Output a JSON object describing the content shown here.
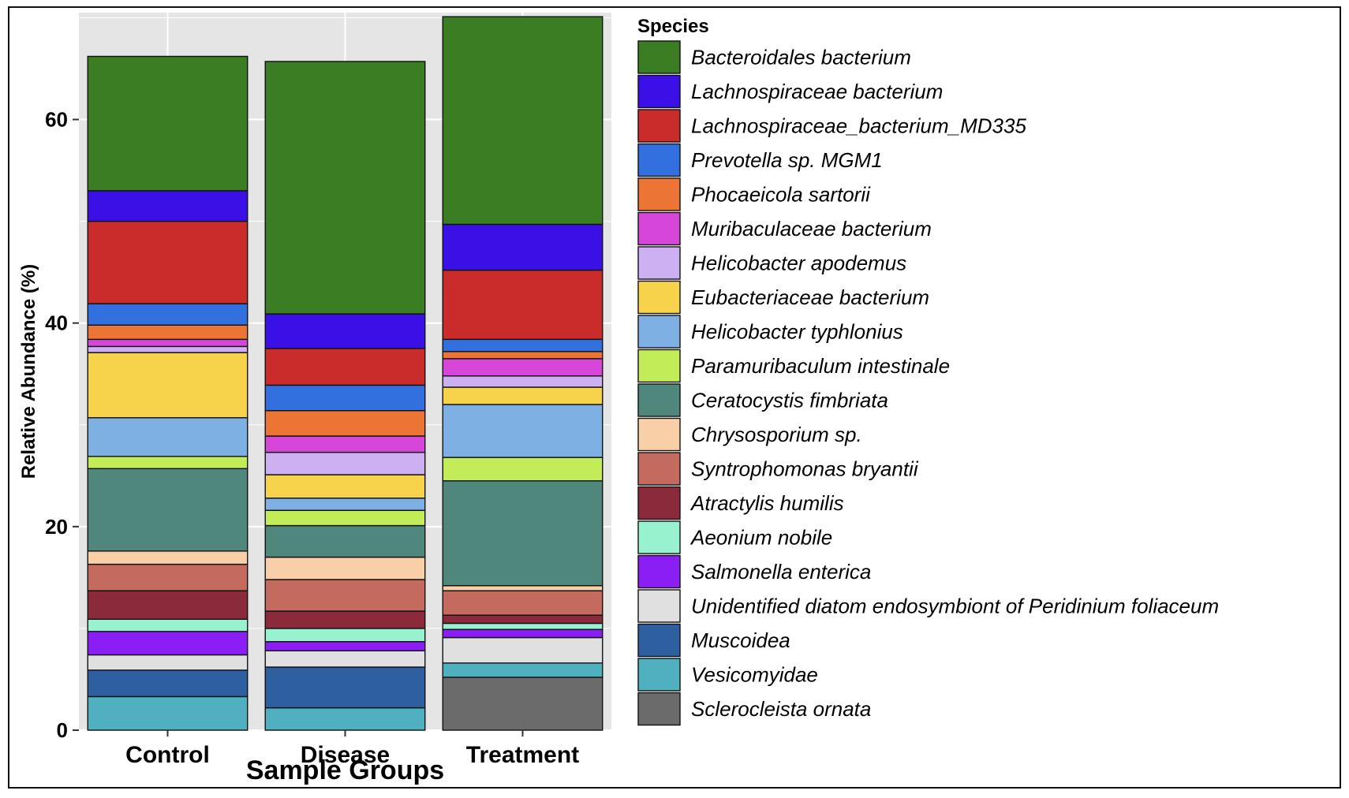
{
  "chart_data": {
    "type": "bar",
    "stacked": true,
    "xlabel": "Sample Groups",
    "ylabel": "Relative Abundance (%)",
    "ylim": [
      0,
      70.5
    ],
    "yticks": [
      0,
      20,
      40,
      60
    ],
    "grid": true,
    "legend_title": "Species",
    "legend_position": "right",
    "categories": [
      "Control",
      "Disease",
      "Treatment"
    ],
    "series": [
      {
        "name": "Sclerocleista ornata",
        "color": "#6b6b6b",
        "values": [
          0,
          0,
          5.2
        ]
      },
      {
        "name": "Vesicomyidae",
        "color": "#4fb0c0",
        "values": [
          3.3,
          2.2,
          1.4
        ]
      },
      {
        "name": "Muscoidea",
        "color": "#2e5fa0",
        "values": [
          2.6,
          4.0,
          0
        ]
      },
      {
        "name": "Unidentified diatom endosymbiont of Peridinium foliaceum",
        "color": "#e0e0e0",
        "values": [
          1.5,
          1.6,
          2.5
        ]
      },
      {
        "name": "Salmonella enterica",
        "color": "#8a1ef5",
        "values": [
          2.3,
          0.9,
          0.8
        ]
      },
      {
        "name": "Aeonium nobile",
        "color": "#98f2cf",
        "values": [
          1.2,
          1.3,
          0.6
        ]
      },
      {
        "name": "Atractylis humilis",
        "color": "#8b2a3a",
        "values": [
          2.8,
          1.7,
          0.8
        ]
      },
      {
        "name": "Syntrophomonas bryantii",
        "color": "#c46a5e",
        "values": [
          2.6,
          3.1,
          2.4
        ]
      },
      {
        "name": "Chrysosporium sp.",
        "color": "#f8cfa6",
        "values": [
          1.3,
          2.2,
          0.5
        ]
      },
      {
        "name": "Ceratocystis fimbriata",
        "color": "#4f877c",
        "values": [
          8.1,
          3.1,
          10.3
        ]
      },
      {
        "name": "Paramuribaculum intestinale",
        "color": "#c2ec58",
        "values": [
          1.2,
          1.5,
          2.3
        ]
      },
      {
        "name": "Helicobacter typhlonius",
        "color": "#7fb0e3",
        "values": [
          3.8,
          1.2,
          5.2
        ]
      },
      {
        "name": "Eubacteriaceae bacterium",
        "color": "#f6d34a",
        "values": [
          6.4,
          2.3,
          1.7
        ]
      },
      {
        "name": "Helicobacter apodemus",
        "color": "#cdb0f2",
        "values": [
          0.6,
          2.2,
          1.1
        ]
      },
      {
        "name": "Muribaculaceae bacterium",
        "color": "#d646d8",
        "values": [
          0.7,
          1.6,
          1.7
        ]
      },
      {
        "name": "Phocaeicola sartorii",
        "color": "#ec7434",
        "values": [
          1.4,
          2.5,
          0.7
        ]
      },
      {
        "name": "Prevotella sp. MGM1",
        "color": "#3270e0",
        "values": [
          2.1,
          2.5,
          1.2
        ]
      },
      {
        "name": "Lachnospiraceae_bacterium_MD335",
        "color": "#c92c2a",
        "values": [
          8.1,
          3.6,
          6.8
        ]
      },
      {
        "name": "Lachnospiraceae bacterium",
        "color": "#3a10e6",
        "values": [
          3.0,
          3.4,
          4.5
        ]
      },
      {
        "name": "Bacteroidales bacterium",
        "color": "#3a7d22",
        "values": [
          13.2,
          24.8,
          20.4
        ]
      }
    ]
  },
  "panel_background": "#e5e5e5",
  "grid_color": "#ffffff"
}
